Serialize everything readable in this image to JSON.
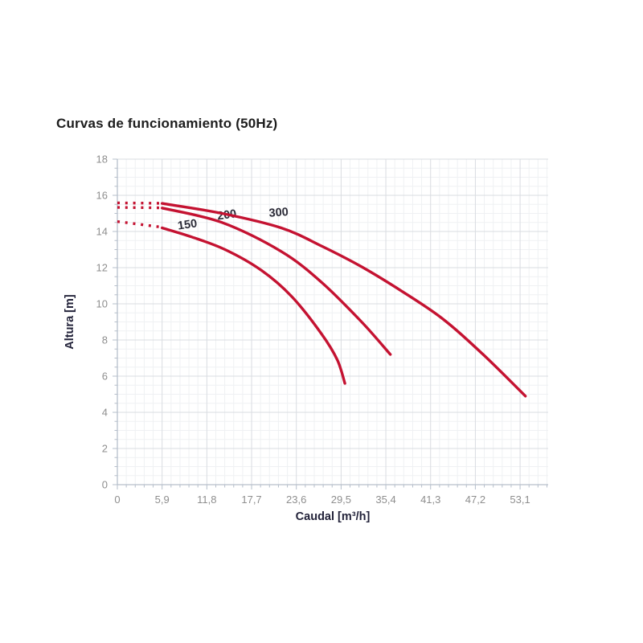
{
  "chart_data": {
    "type": "line",
    "title": "Curvas de funcionamiento (50Hz)",
    "xlabel": "Caudal [m³/h]",
    "ylabel": "Altura [m]",
    "xlim": [
      0,
      56.8
    ],
    "ylim": [
      0,
      18
    ],
    "x_major_ticks": [
      0,
      5.9,
      11.8,
      17.7,
      23.6,
      29.5,
      35.4,
      41.3,
      47.2,
      53.1
    ],
    "x_tick_labels": [
      "0",
      "5,9",
      "11,8",
      "17,7",
      "23,6",
      "29,5",
      "35,4",
      "41,3",
      "47,2",
      "53,1"
    ],
    "y_major_ticks": [
      0,
      2,
      4,
      6,
      8,
      10,
      12,
      14,
      16,
      18
    ],
    "y_tick_labels": [
      "0",
      "2",
      "4",
      "6",
      "8",
      "10",
      "12",
      "14",
      "16",
      "18"
    ],
    "x_minor_step": 1.18,
    "y_minor_step": 0.5,
    "grid": true,
    "legend_position": "none",
    "colors": {
      "curve": "#c41231",
      "major_grid": "#d9dce1",
      "minor_grid": "#eff1f3",
      "axis_line": "#b6bfcb",
      "tick_text": "#8e8e8e",
      "axis_label_text": "#23233a",
      "curve_label_text": "#2c2c38"
    },
    "series": [
      {
        "name": "150",
        "label": "150",
        "label_pos": [
          9.3,
          14.18
        ],
        "label_rotation": -8,
        "dotted": [
          [
            0,
            14.55
          ],
          [
            5.6,
            14.25
          ]
        ],
        "solid": [
          [
            5.9,
            14.2
          ],
          [
            9.8,
            13.7
          ],
          [
            14.2,
            13.0
          ],
          [
            19.0,
            11.85
          ],
          [
            23.0,
            10.4
          ],
          [
            26.9,
            8.35
          ],
          [
            29.0,
            6.9
          ],
          [
            30.0,
            5.6
          ]
        ]
      },
      {
        "name": "200",
        "label": "200",
        "label_pos": [
          14.5,
          14.72
        ],
        "label_rotation": -8,
        "dotted": [
          [
            0,
            15.33
          ],
          [
            5.6,
            15.31
          ]
        ],
        "solid": [
          [
            5.9,
            15.3
          ],
          [
            13.8,
            14.5
          ],
          [
            21.6,
            12.9
          ],
          [
            26.9,
            11.2
          ],
          [
            32.2,
            9.0
          ],
          [
            36.0,
            7.2
          ]
        ]
      },
      {
        "name": "300",
        "label": "300",
        "label_pos": [
          21.3,
          14.85
        ],
        "label_rotation": -4,
        "dotted": [
          [
            0,
            15.58
          ],
          [
            5.6,
            15.56
          ]
        ],
        "solid": [
          [
            5.9,
            15.55
          ],
          [
            13.8,
            15.0
          ],
          [
            21.6,
            14.2
          ],
          [
            26.9,
            13.2
          ],
          [
            32.2,
            12.05
          ],
          [
            37.5,
            10.7
          ],
          [
            42.8,
            9.2
          ],
          [
            48.1,
            7.25
          ],
          [
            53.8,
            4.9
          ]
        ]
      }
    ]
  }
}
